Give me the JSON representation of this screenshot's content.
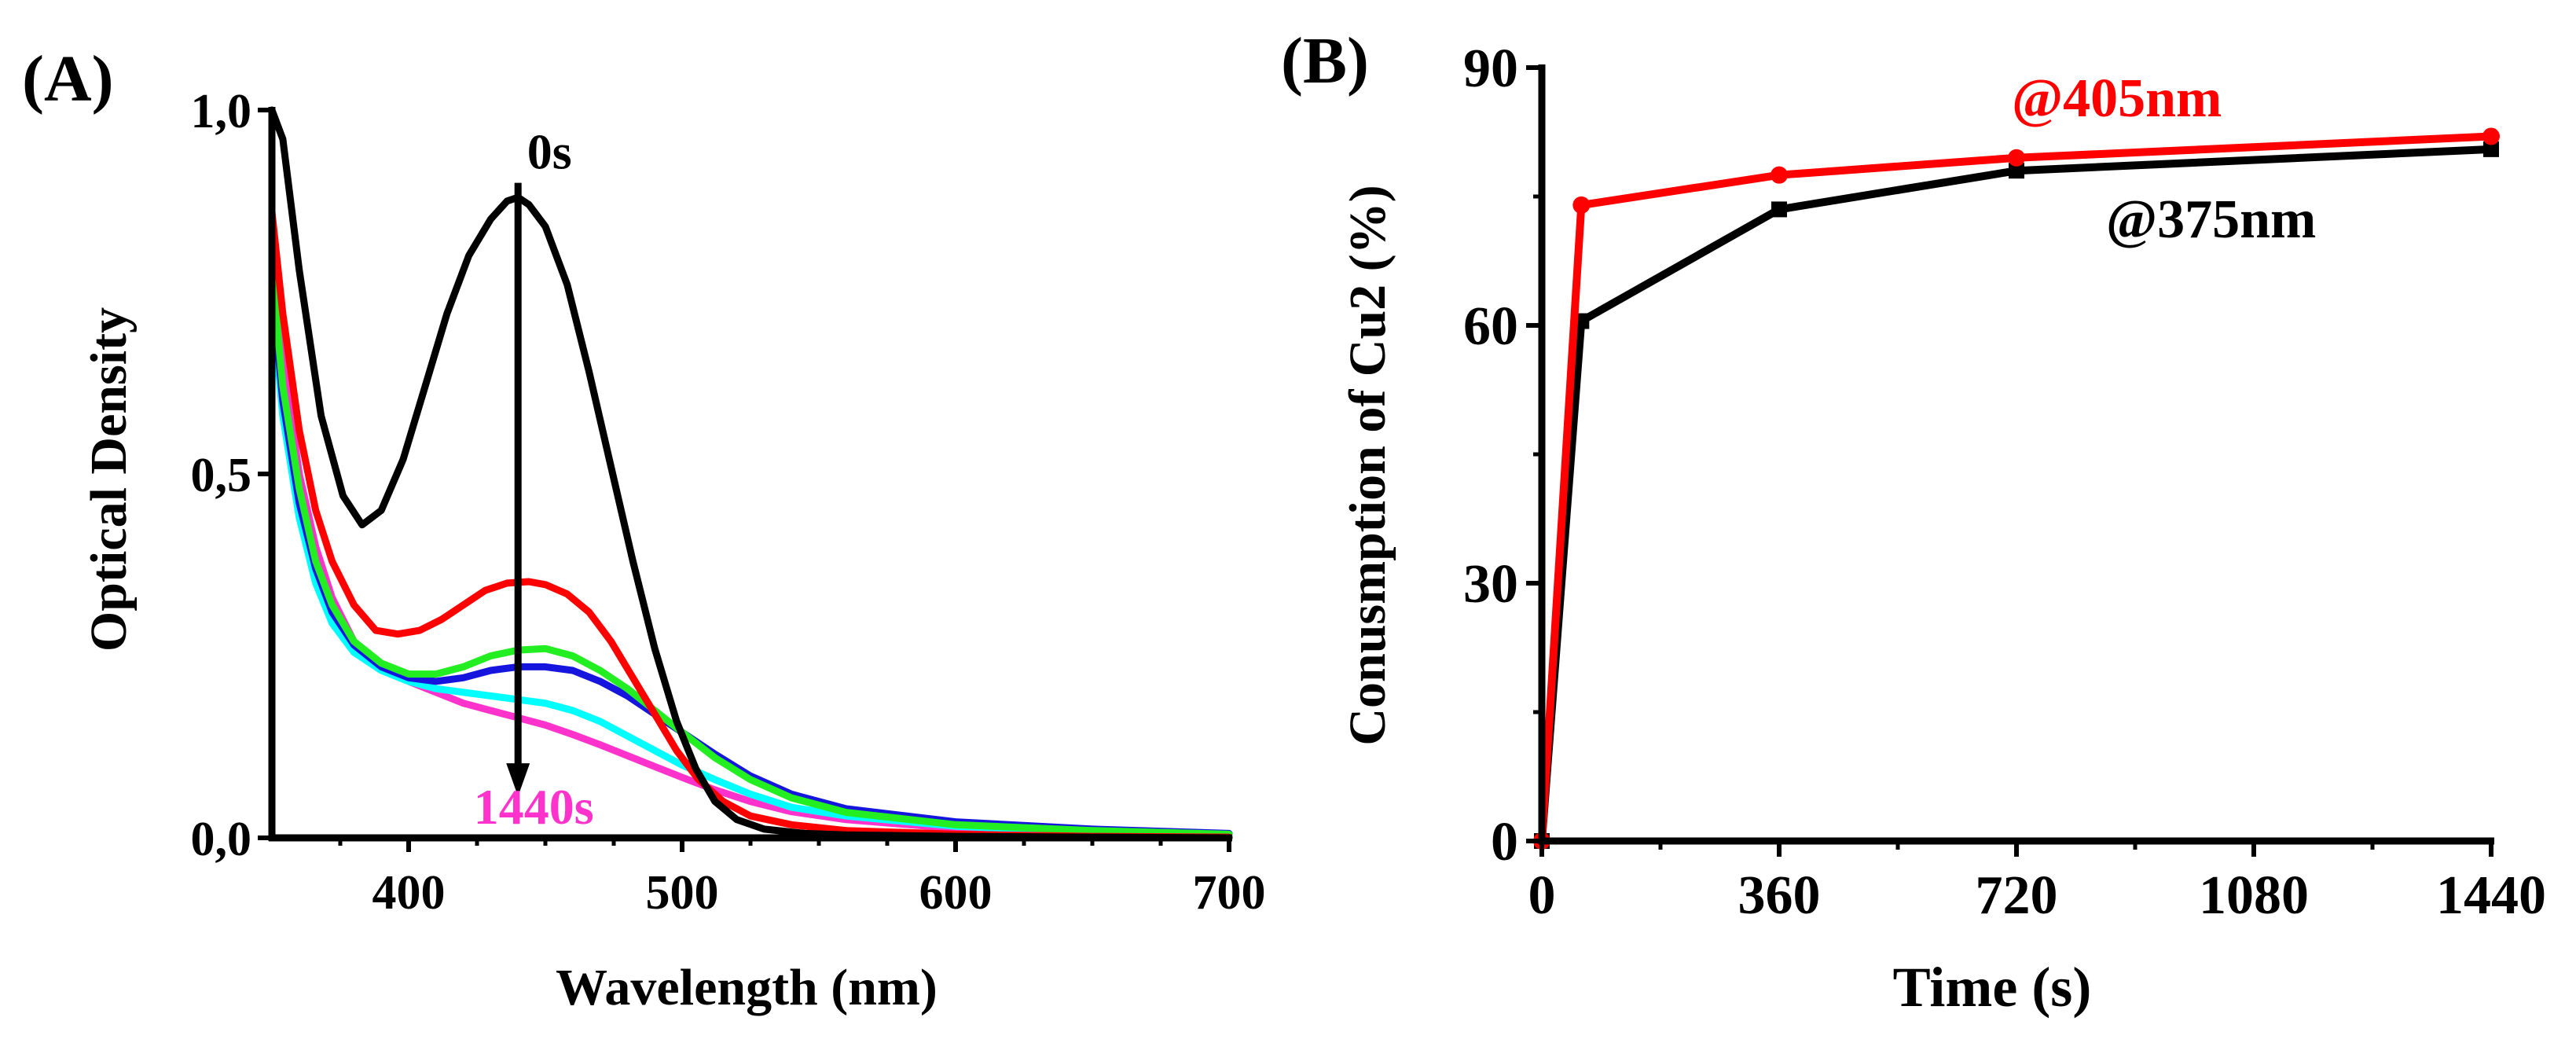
{
  "chart_data": [
    {
      "panel": "(A)",
      "type": "line",
      "xlabel": "Wavelength (nm)",
      "ylabel": "Optical Density",
      "xlim": [
        350,
        700
      ],
      "ylim": [
        0,
        1.0
      ],
      "xticks": [
        400,
        500,
        600,
        700
      ],
      "xtick_labels": [
        "400",
        "500",
        "600",
        "700"
      ],
      "yticks": [
        0,
        0.5,
        1.0
      ],
      "ytick_labels": [
        "0,0",
        "0,5",
        "1,0"
      ],
      "grid": false,
      "annotations": {
        "start_label": "0s",
        "end_label": "1440s",
        "start_color": "#000000",
        "end_color": "#ff33cc",
        "arrow_x": 440,
        "arrow_from": 0.9,
        "arrow_to": 0.07
      },
      "series": [
        {
          "name": "0s",
          "color": "#000000",
          "x": [
            350,
            354,
            360,
            368,
            376,
            383,
            390,
            398,
            406,
            414,
            422,
            430,
            436,
            440,
            444,
            450,
            458,
            466,
            474,
            482,
            490,
            498,
            505,
            512,
            520,
            530,
            545,
            560,
            600,
            650,
            700
          ],
          "y": [
            1.0,
            0.96,
            0.78,
            0.58,
            0.47,
            0.43,
            0.45,
            0.52,
            0.62,
            0.72,
            0.8,
            0.85,
            0.875,
            0.88,
            0.87,
            0.84,
            0.76,
            0.64,
            0.51,
            0.38,
            0.26,
            0.16,
            0.095,
            0.05,
            0.025,
            0.012,
            0.006,
            0.004,
            0.002,
            0.001,
            0.0
          ]
        },
        {
          "name": "red",
          "color": "#ff0000",
          "x": [
            350,
            354,
            360,
            366,
            372,
            380,
            388,
            396,
            404,
            412,
            420,
            428,
            436,
            444,
            450,
            458,
            466,
            474,
            482,
            490,
            498,
            506,
            515,
            525,
            540,
            560,
            600,
            650,
            700
          ],
          "y": [
            0.86,
            0.72,
            0.56,
            0.45,
            0.38,
            0.32,
            0.285,
            0.28,
            0.285,
            0.3,
            0.32,
            0.34,
            0.35,
            0.352,
            0.348,
            0.335,
            0.31,
            0.27,
            0.22,
            0.17,
            0.12,
            0.08,
            0.05,
            0.03,
            0.018,
            0.01,
            0.005,
            0.002,
            0.001
          ]
        },
        {
          "name": "green",
          "color": "#22ee22",
          "x": [
            350,
            354,
            360,
            366,
            372,
            380,
            390,
            400,
            410,
            420,
            430,
            440,
            450,
            460,
            470,
            480,
            490,
            500,
            512,
            525,
            540,
            560,
            600,
            650,
            700
          ],
          "y": [
            0.78,
            0.62,
            0.48,
            0.38,
            0.32,
            0.27,
            0.24,
            0.225,
            0.225,
            0.235,
            0.25,
            0.258,
            0.26,
            0.25,
            0.23,
            0.205,
            0.175,
            0.145,
            0.11,
            0.08,
            0.055,
            0.035,
            0.018,
            0.01,
            0.005
          ]
        },
        {
          "name": "blue",
          "color": "#1515dd",
          "x": [
            350,
            354,
            360,
            366,
            372,
            380,
            390,
            400,
            410,
            420,
            430,
            440,
            450,
            460,
            470,
            480,
            490,
            500,
            512,
            525,
            540,
            560,
            600,
            650,
            700
          ],
          "y": [
            0.76,
            0.6,
            0.46,
            0.37,
            0.31,
            0.265,
            0.235,
            0.22,
            0.215,
            0.22,
            0.23,
            0.235,
            0.235,
            0.23,
            0.215,
            0.195,
            0.17,
            0.145,
            0.115,
            0.085,
            0.06,
            0.04,
            0.022,
            0.012,
            0.006
          ]
        },
        {
          "name": "cyan",
          "color": "#00ffff",
          "x": [
            350,
            354,
            360,
            366,
            372,
            380,
            390,
            400,
            410,
            420,
            430,
            440,
            450,
            460,
            470,
            480,
            490,
            500,
            512,
            525,
            540,
            560,
            600,
            650,
            700
          ],
          "y": [
            0.74,
            0.58,
            0.44,
            0.35,
            0.295,
            0.255,
            0.23,
            0.215,
            0.205,
            0.2,
            0.195,
            0.19,
            0.185,
            0.175,
            0.16,
            0.14,
            0.12,
            0.1,
            0.08,
            0.06,
            0.042,
            0.03,
            0.016,
            0.008,
            0.004
          ]
        },
        {
          "name": "1440s",
          "color": "#ff33cc",
          "x": [
            350,
            354,
            360,
            366,
            372,
            380,
            390,
            400,
            410,
            420,
            430,
            440,
            450,
            460,
            470,
            480,
            490,
            500,
            512,
            525,
            540,
            560,
            600,
            650,
            700
          ],
          "y": [
            0.82,
            0.66,
            0.5,
            0.4,
            0.33,
            0.27,
            0.235,
            0.215,
            0.2,
            0.185,
            0.175,
            0.165,
            0.155,
            0.142,
            0.128,
            0.113,
            0.098,
            0.083,
            0.066,
            0.05,
            0.036,
            0.025,
            0.013,
            0.006,
            0.002
          ]
        }
      ]
    },
    {
      "panel": "(B)",
      "type": "line",
      "xlabel": "Time (s)",
      "ylabel": "Conusmption of Cu2 (%)",
      "xlim": [
        0,
        1440
      ],
      "ylim": [
        0,
        90
      ],
      "xticks": [
        0,
        360,
        720,
        1080,
        1440
      ],
      "xtick_labels": [
        "0",
        "360",
        "720",
        "1080",
        "1440"
      ],
      "yticks": [
        0,
        30,
        60,
        90
      ],
      "ytick_labels": [
        "0",
        "30",
        "60",
        "90"
      ],
      "grid": false,
      "series": [
        {
          "name": "@375nm",
          "color": "#000000",
          "marker": "square",
          "x": [
            0,
            60,
            360,
            720,
            1440
          ],
          "y": [
            0,
            60.5,
            73.5,
            78,
            80.5
          ]
        },
        {
          "name": "@405nm",
          "color": "#ff0000",
          "marker": "circle",
          "x": [
            0,
            60,
            360,
            720,
            1440
          ],
          "y": [
            0,
            74,
            77.5,
            79.5,
            82
          ]
        }
      ]
    }
  ]
}
